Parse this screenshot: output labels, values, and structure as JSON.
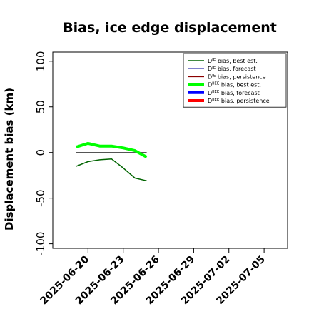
{
  "chart_data": {
    "type": "line",
    "title": "Bias, ice edge displacement",
    "xlabel": "",
    "ylabel": "Displacement bias (km)",
    "ylim": [
      -105,
      110
    ],
    "yticks": [
      -100,
      -50,
      0,
      50,
      100
    ],
    "xlim": [
      "2025-06-17",
      "2025-07-07"
    ],
    "xticks": [
      "2025-06-20",
      "2025-06-23",
      "2025-06-26",
      "2025-06-29",
      "2025-07-02",
      "2025-07-05"
    ],
    "highlight_tick": "2025-06-26",
    "highlight_color": "#228b22",
    "grid": false,
    "legend_position": "top-right",
    "zero_line": {
      "from": "2025-06-19",
      "to": "2025-06-25",
      "value": 0,
      "color": "#555555"
    },
    "series": [
      {
        "name_main": "D",
        "name_sup": "IE",
        "name_rest": " bias, best est.",
        "color": "#006400",
        "width": 1.5,
        "x": [
          "2025-06-19",
          "2025-06-20",
          "2025-06-21",
          "2025-06-22",
          "2025-06-23",
          "2025-06-24",
          "2025-06-25"
        ],
        "values": [
          -15,
          -10,
          -8,
          -7,
          -17,
          -28,
          -31
        ]
      },
      {
        "name_main": "D",
        "name_sup": "IE",
        "name_rest": " bias, forecast",
        "color": "#000099",
        "width": 1.5,
        "x": [],
        "values": []
      },
      {
        "name_main": "D",
        "name_sup": "IE",
        "name_rest": " bias, persistence",
        "color": "#8b0000",
        "width": 1.5,
        "x": [],
        "values": []
      },
      {
        "name_main": "D",
        "name_sup": "IIEE",
        "name_rest": " bias, best est.",
        "color": "#00ff00",
        "width": 4,
        "x": [
          "2025-06-19",
          "2025-06-20",
          "2025-06-21",
          "2025-06-22",
          "2025-06-23",
          "2025-06-24",
          "2025-06-25"
        ],
        "values": [
          6,
          10,
          7,
          7,
          5,
          2,
          -5
        ]
      },
      {
        "name_main": "D",
        "name_sup": "IIEE",
        "name_rest": " bias, forecast",
        "color": "#0000ff",
        "width": 4,
        "x": [],
        "values": []
      },
      {
        "name_main": "D",
        "name_sup": "IIEE",
        "name_rest": " bias, persistence",
        "color": "#ff0000",
        "width": 4,
        "x": [],
        "values": []
      }
    ]
  }
}
